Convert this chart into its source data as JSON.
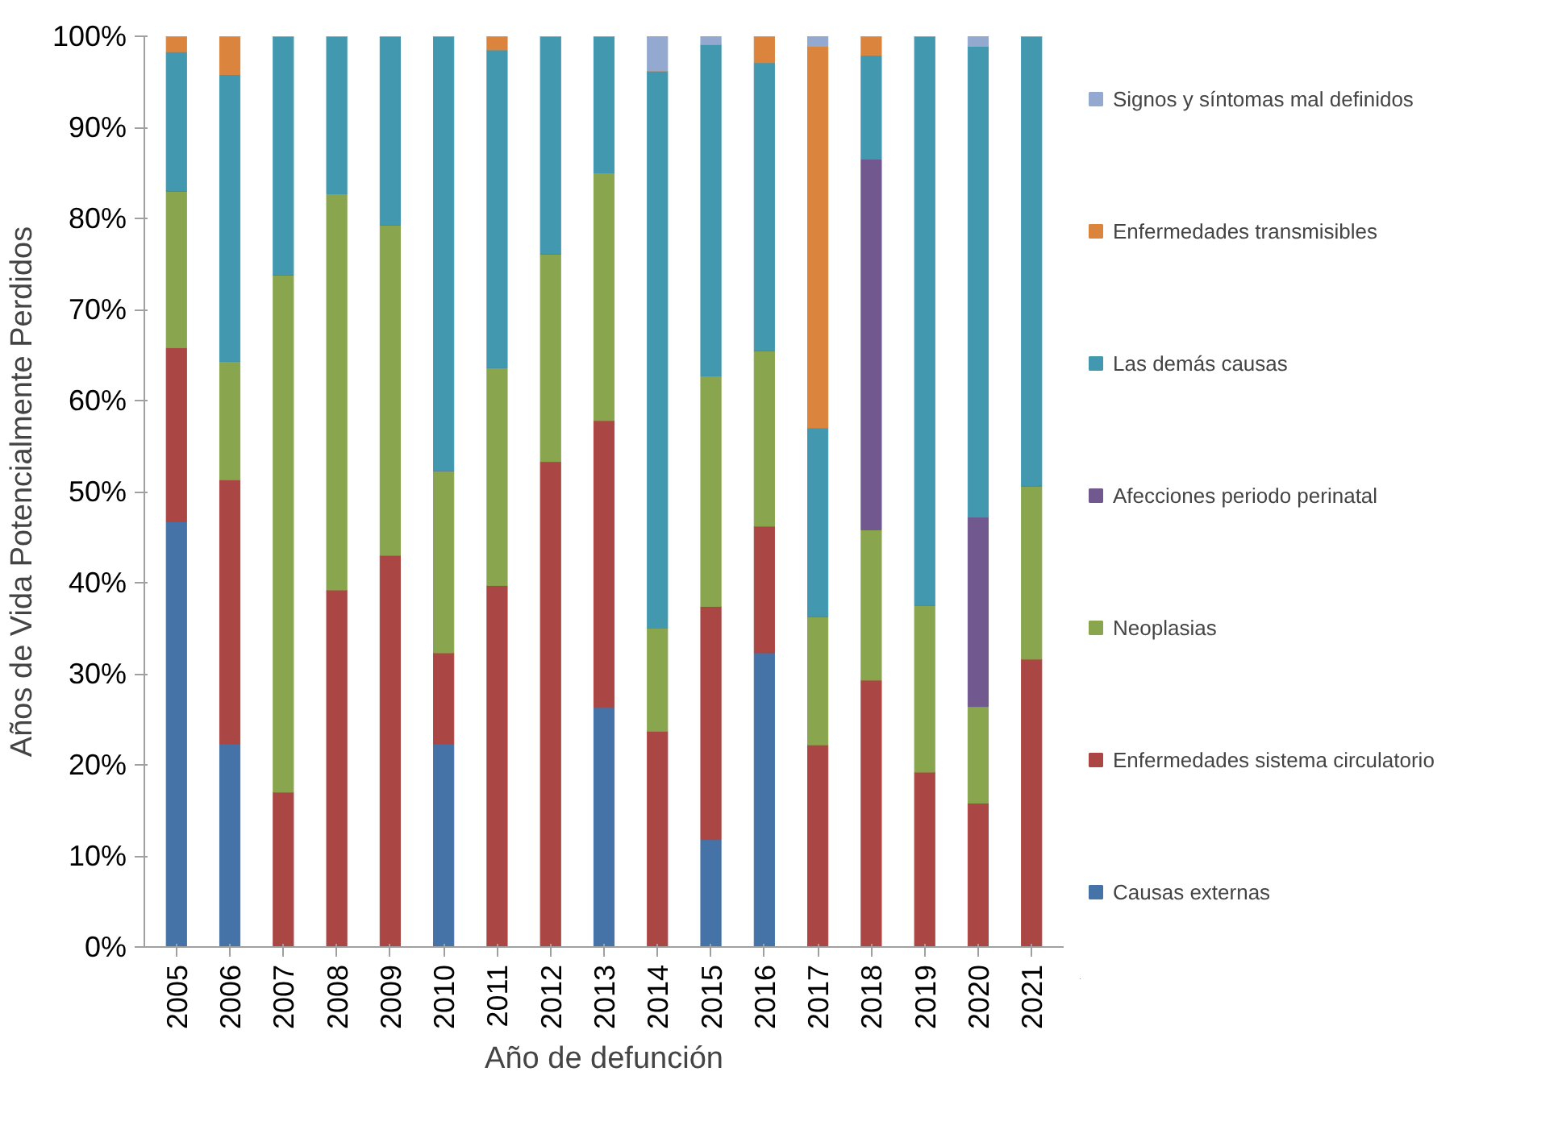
{
  "chart_data": {
    "type": "bar",
    "stacked": true,
    "xlabel": "Año de defunción",
    "ylabel": "Años de Vida Potencialmente Perdidos",
    "categories": [
      "2005",
      "2006",
      "2007",
      "2008",
      "2009",
      "2010",
      "2011",
      "2012",
      "2013",
      "2014",
      "2015",
      "2016",
      "2017",
      "2018",
      "2019",
      "2020",
      "2021"
    ],
    "series": [
      {
        "name": "Causas externas",
        "color": "#4572a7",
        "values": [
          46.7,
          22.3,
          0,
          0,
          0,
          22.3,
          0,
          0,
          26.3,
          0,
          11.8,
          32.3,
          0,
          0,
          0,
          0,
          0
        ]
      },
      {
        "name": "Enfermedades sistema circulatorio",
        "color": "#aa4643",
        "values": [
          19.1,
          29.0,
          17.0,
          39.2,
          43.0,
          10.0,
          39.7,
          53.3,
          31.5,
          23.7,
          25.6,
          13.9,
          22.2,
          29.3,
          19.2,
          15.8,
          31.6
        ]
      },
      {
        "name": "Neoplasias",
        "color": "#89a54e",
        "values": [
          17.2,
          13.0,
          56.8,
          43.5,
          36.3,
          20.0,
          23.9,
          22.8,
          27.2,
          11.3,
          25.3,
          19.3,
          14.1,
          16.5,
          18.3,
          10.6,
          19.0
        ]
      },
      {
        "name": "Afecciones periodo perinatal",
        "color": "#71588f",
        "values": [
          0,
          0,
          0,
          0,
          0,
          0,
          0,
          0,
          0,
          0,
          0,
          0,
          0,
          40.7,
          0,
          20.8,
          0
        ]
      },
      {
        "name": "Las demás causas",
        "color": "#4198af",
        "values": [
          15.3,
          31.5,
          26.2,
          17.3,
          20.7,
          47.7,
          34.9,
          23.9,
          15.0,
          61.2,
          36.4,
          31.6,
          20.7,
          11.4,
          62.5,
          51.7,
          49.4
        ]
      },
      {
        "name": "Enfermedades transmisibles",
        "color": "#db843d",
        "values": [
          1.7,
          4.2,
          0,
          0,
          0,
          0,
          1.5,
          0,
          0,
          0,
          0,
          2.9,
          41.9,
          2.1,
          0,
          0,
          0
        ]
      },
      {
        "name": "Signos y síntomas mal definidos",
        "color": "#93a9cf",
        "values": [
          0,
          0,
          0,
          0,
          0,
          0,
          0,
          0,
          0,
          3.8,
          0.9,
          0,
          1.1,
          0,
          0,
          1.1,
          0
        ]
      }
    ],
    "ylim": [
      0,
      100
    ],
    "yticks": [
      {
        "value": 0,
        "label": "0%"
      },
      {
        "value": 10,
        "label": "10%"
      },
      {
        "value": 20,
        "label": "20%"
      },
      {
        "value": 30,
        "label": "30%"
      },
      {
        "value": 40,
        "label": "40%"
      },
      {
        "value": 50,
        "label": "50%"
      },
      {
        "value": 60,
        "label": "60%"
      },
      {
        "value": 70,
        "label": "70%"
      },
      {
        "value": 80,
        "label": "80%"
      },
      {
        "value": 90,
        "label": "90%"
      },
      {
        "value": 100,
        "label": "100%"
      }
    ],
    "grid": false,
    "legend": "right"
  }
}
